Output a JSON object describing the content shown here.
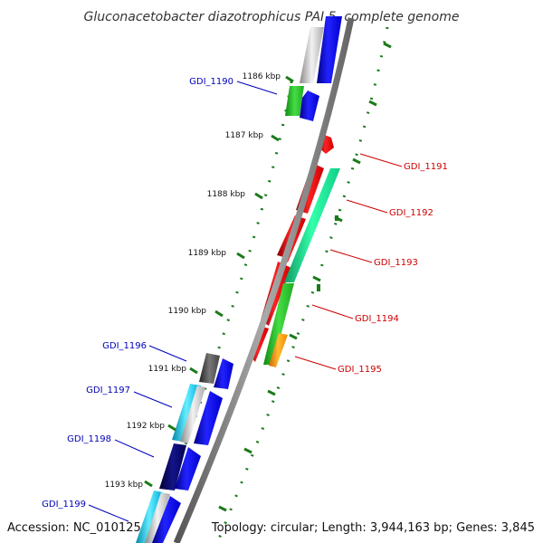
{
  "title": "Gluconacetobacter diazotrophicus PAI 5, complete genome",
  "accession": "Accession: NC_010125",
  "topology": "Topology: circular; Length: 3,944,163 bp; Genes: 3,845",
  "colors": {
    "backbone": "#7f7f7f",
    "tick": "#1a7a1a",
    "forward_label": "#0000bb",
    "reverse_label": "#cc0000",
    "blue": "#1a1aee",
    "red": "#ee1111",
    "green": "#33cc33",
    "mint": "#22ee99",
    "grey": "#888888",
    "dark": "#444444",
    "cyan": "#22ccff",
    "navy": "#0a0a66",
    "orange": "#ff9900",
    "white": "#f0f0f0"
  },
  "ticks": [
    {
      "label": "1186 kbp"
    },
    {
      "label": "1187 kbp"
    },
    {
      "label": "1188 kbp"
    },
    {
      "label": "1189 kbp"
    },
    {
      "label": "1190 kbp"
    },
    {
      "label": "1191 kbp"
    },
    {
      "label": "1192 kbp"
    },
    {
      "label": "1193 kbp"
    }
  ],
  "genes_forward": [
    {
      "label": "GDI_1190"
    },
    {
      "label": "GDI_1196"
    },
    {
      "label": "GDI_1197"
    },
    {
      "label": "GDI_1198"
    },
    {
      "label": "GDI_1199"
    }
  ],
  "genes_reverse": [
    {
      "label": "GDI_1191"
    },
    {
      "label": "GDI_1192"
    },
    {
      "label": "GDI_1193"
    },
    {
      "label": "GDI_1194"
    },
    {
      "label": "GDI_1195"
    }
  ]
}
